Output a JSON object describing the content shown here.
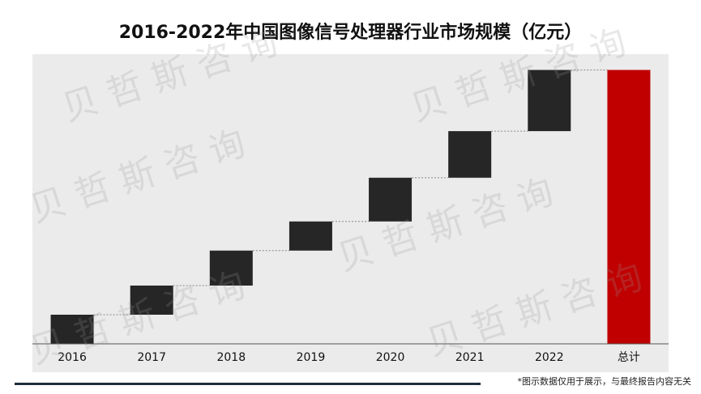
{
  "title": "2016-2022年中国图像信号处理器行业市场规模（亿元）",
  "footnote": "*图示数据仅用于展示，与最终报告内容无关",
  "watermark": "贝哲斯咨询",
  "colors": {
    "panel": "#ebebeb",
    "bar": "#262626",
    "total": "#c00000",
    "connector": "#888888",
    "axis": "#555555"
  },
  "chart_data": {
    "type": "bar",
    "subtype": "waterfall",
    "title": "2016-2022年中国图像信号处理器行业市场规模（亿元）",
    "categories": [
      "2016",
      "2017",
      "2018",
      "2019",
      "2020",
      "2021",
      "2022",
      "总计"
    ],
    "increments": [
      10,
      10,
      12,
      10,
      15,
      16,
      21,
      null
    ],
    "cumulative_end": [
      10,
      20,
      32,
      42,
      57,
      73,
      94,
      94
    ],
    "total": 94,
    "ylim": [
      0,
      100
    ],
    "grid": false,
    "legend": "none"
  }
}
